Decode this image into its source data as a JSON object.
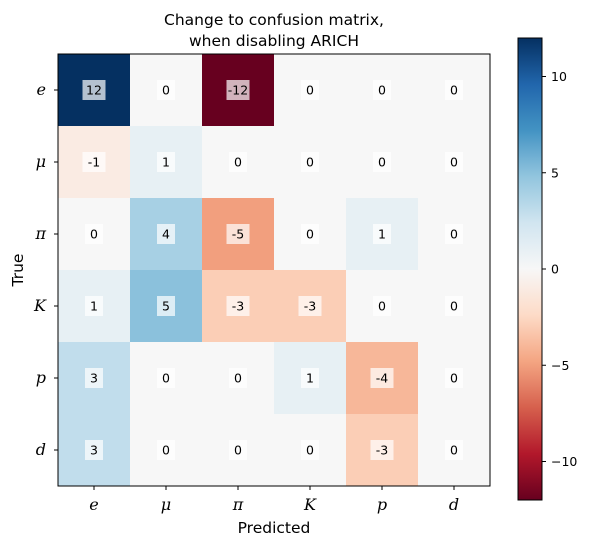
{
  "chart_data": {
    "type": "heatmap",
    "title": [
      "Change to confusion matrix,",
      "when disabling ARICH"
    ],
    "xlabel": "Predicted",
    "ylabel": "True",
    "x_categories": [
      "e",
      "μ",
      "π",
      "K",
      "p",
      "d"
    ],
    "y_categories": [
      "e",
      "μ",
      "π",
      "K",
      "p",
      "d"
    ],
    "values": [
      [
        12,
        0,
        -12,
        0,
        0,
        0
      ],
      [
        -1,
        1,
        0,
        0,
        0,
        0
      ],
      [
        0,
        4,
        -5,
        0,
        1,
        0
      ],
      [
        1,
        5,
        -3,
        -3,
        0,
        0
      ],
      [
        3,
        0,
        0,
        1,
        -4,
        0
      ],
      [
        3,
        0,
        0,
        0,
        -3,
        0
      ]
    ],
    "colorbar": {
      "colormap": "RdBu",
      "range": [
        -12,
        12
      ],
      "ticks": [
        -10,
        -5,
        0,
        5,
        10
      ],
      "tick_labels": [
        "−10",
        "−5",
        "0",
        "5",
        "10"
      ]
    },
    "grid": false
  }
}
